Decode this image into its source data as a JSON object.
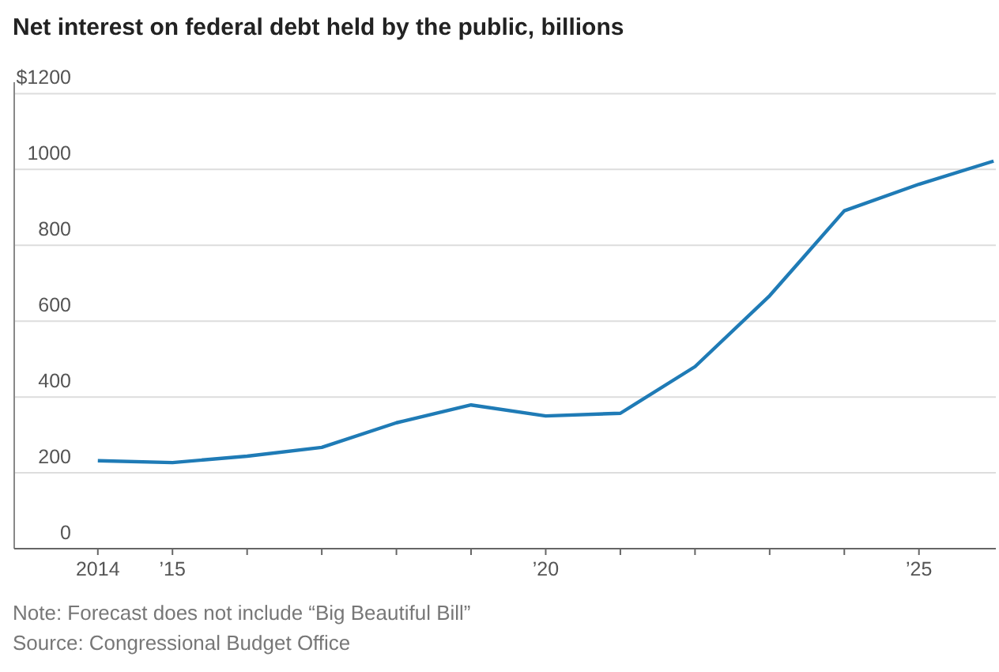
{
  "chart_data": {
    "type": "line",
    "title": "Net interest on federal debt held by the public, billions",
    "x": [
      2014,
      2015,
      2016,
      2017,
      2018,
      2019,
      2020,
      2021,
      2022,
      2023,
      2024,
      2025,
      2026
    ],
    "series": [
      {
        "color": "#1f7bb6",
        "values": [
          232,
          227,
          244,
          267,
          332,
          379,
          350,
          357,
          480,
          667,
          891,
          961,
          1022
        ]
      }
    ],
    "xlim": [
      2012.88,
      2026.03
    ],
    "xticks": [
      {
        "value": 2014,
        "label": "2014"
      },
      {
        "value": 2015,
        "label": "’15"
      },
      {
        "value": 2016,
        "label": null
      },
      {
        "value": 2017,
        "label": null
      },
      {
        "value": 2018,
        "label": null
      },
      {
        "value": 2019,
        "label": null
      },
      {
        "value": 2020,
        "label": "’20"
      },
      {
        "value": 2021,
        "label": null
      },
      {
        "value": 2022,
        "label": null
      },
      {
        "value": 2023,
        "label": null
      },
      {
        "value": 2024,
        "label": null
      },
      {
        "value": 2025,
        "label": "’25"
      }
    ],
    "ylim": [
      0,
      1230
    ],
    "yticks": [
      0,
      200,
      400,
      600,
      800,
      1000,
      {
        "value": 1200,
        "label": "$1200"
      }
    ],
    "grid": "y",
    "annotations": [
      "Note: Forecast does not include “Big Beautiful Bill”",
      "Source: Congressional Budget Office"
    ]
  }
}
